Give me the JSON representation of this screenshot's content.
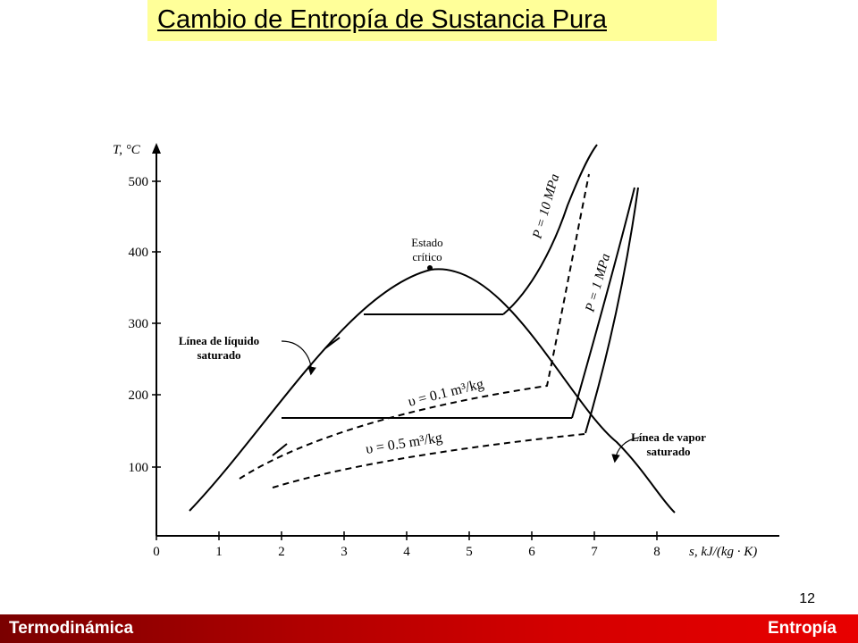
{
  "slide": {
    "title": "Cambio de Entropía de Sustancia Pura",
    "page_number": "12",
    "footer_left": "Termodinámica",
    "footer_right": "Entropía"
  },
  "colors": {
    "title_bg": "#ffff99",
    "footer_dark": "#7a0000",
    "footer_bright": "#e80000"
  },
  "diagram": {
    "y_axis_label": "T, °C",
    "x_axis_label": "s, kJ/(kg · K)",
    "x_ticks": [
      "0",
      "1",
      "2",
      "3",
      "4",
      "5",
      "6",
      "7",
      "8"
    ],
    "y_ticks": [
      "100",
      "200",
      "300",
      "400",
      "500"
    ],
    "critical_state": [
      "Estado",
      "crítico"
    ],
    "saturated_liquid": [
      "Línea de líquido",
      "saturado"
    ],
    "saturated_vapor": [
      "Línea de vapor",
      "saturado"
    ],
    "isobar_high": "P = 10 MPa",
    "isobar_low": "P = 1 MPa",
    "isochore_small": "υ = 0.1 m³/kg",
    "isochore_large": "υ = 0.5 m³/kg"
  }
}
